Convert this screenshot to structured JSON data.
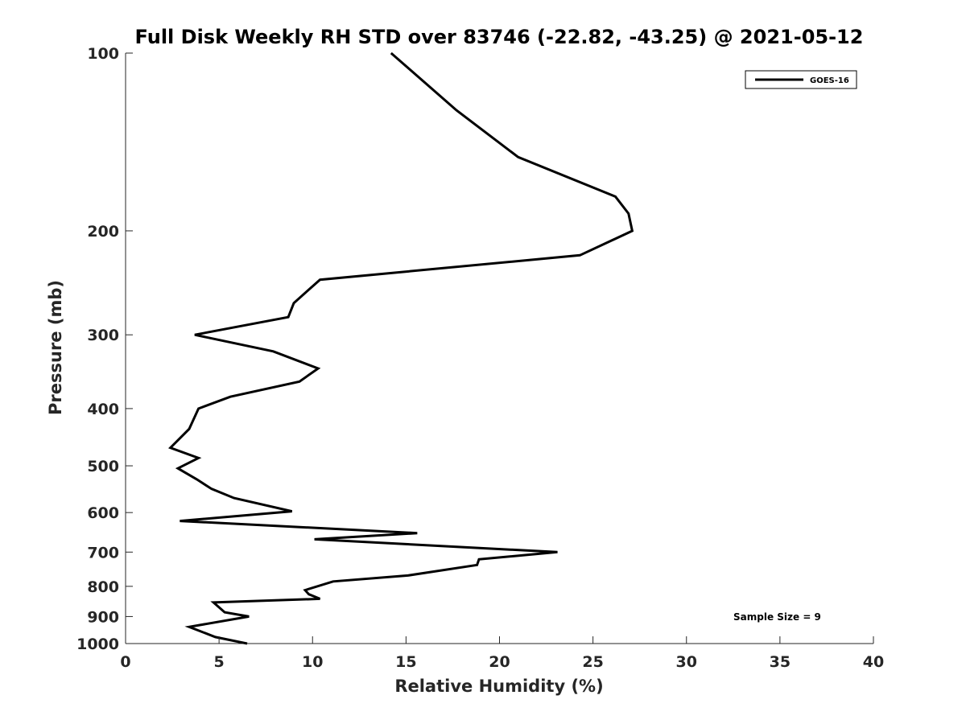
{
  "chart_data": {
    "type": "line",
    "title": "Full Disk Weekly RH STD over 83746 (-22.82, -43.25) @ 2021-05-12",
    "xlabel": "Relative Humidity (%)",
    "ylabel": "Pressure (mb)",
    "xlim": [
      0,
      40
    ],
    "ylim": [
      1000,
      100
    ],
    "y_scale": "log",
    "y_reversed": true,
    "grid": false,
    "legend_position": "top-right",
    "x_ticks": [
      "0",
      "5",
      "10",
      "15",
      "20",
      "25",
      "30",
      "35",
      "40"
    ],
    "x_tick_values": [
      0,
      5,
      10,
      15,
      20,
      25,
      30,
      35,
      40
    ],
    "y_ticks": [
      "100",
      "200",
      "300",
      "400",
      "500",
      "600",
      "700",
      "800",
      "900",
      "1000"
    ],
    "y_tick_values": [
      100,
      200,
      300,
      400,
      500,
      600,
      700,
      800,
      900,
      1000
    ],
    "series": [
      {
        "name": "GOES-16",
        "color": "#000000",
        "points": [
          [
            14.2,
            100
          ],
          [
            17.7,
            125
          ],
          [
            21.0,
            150
          ],
          [
            26.2,
            175
          ],
          [
            26.9,
            187
          ],
          [
            27.1,
            200
          ],
          [
            24.3,
            220
          ],
          [
            10.4,
            242
          ],
          [
            9.0,
            265
          ],
          [
            8.7,
            280
          ],
          [
            3.7,
            300
          ],
          [
            7.9,
            320
          ],
          [
            10.3,
            342
          ],
          [
            9.3,
            360
          ],
          [
            5.6,
            382
          ],
          [
            3.9,
            400
          ],
          [
            3.4,
            433
          ],
          [
            2.4,
            466
          ],
          [
            3.9,
            485
          ],
          [
            2.8,
            505
          ],
          [
            3.8,
            527
          ],
          [
            4.6,
            547
          ],
          [
            5.8,
            567
          ],
          [
            8.9,
            597
          ],
          [
            2.9,
            620
          ],
          [
            15.6,
            650
          ],
          [
            10.1,
            666
          ],
          [
            23.1,
            700
          ],
          [
            18.9,
            720
          ],
          [
            18.8,
            736
          ],
          [
            15.1,
            767
          ],
          [
            11.1,
            785
          ],
          [
            9.6,
            812
          ],
          [
            9.8,
            825
          ],
          [
            10.4,
            840
          ],
          [
            4.7,
            852
          ],
          [
            5.3,
            885
          ],
          [
            6.6,
            900
          ],
          [
            3.4,
            937
          ],
          [
            4.8,
            975
          ],
          [
            6.5,
            1000
          ]
        ]
      }
    ],
    "annotations": [
      "Sample Size = 9"
    ]
  }
}
